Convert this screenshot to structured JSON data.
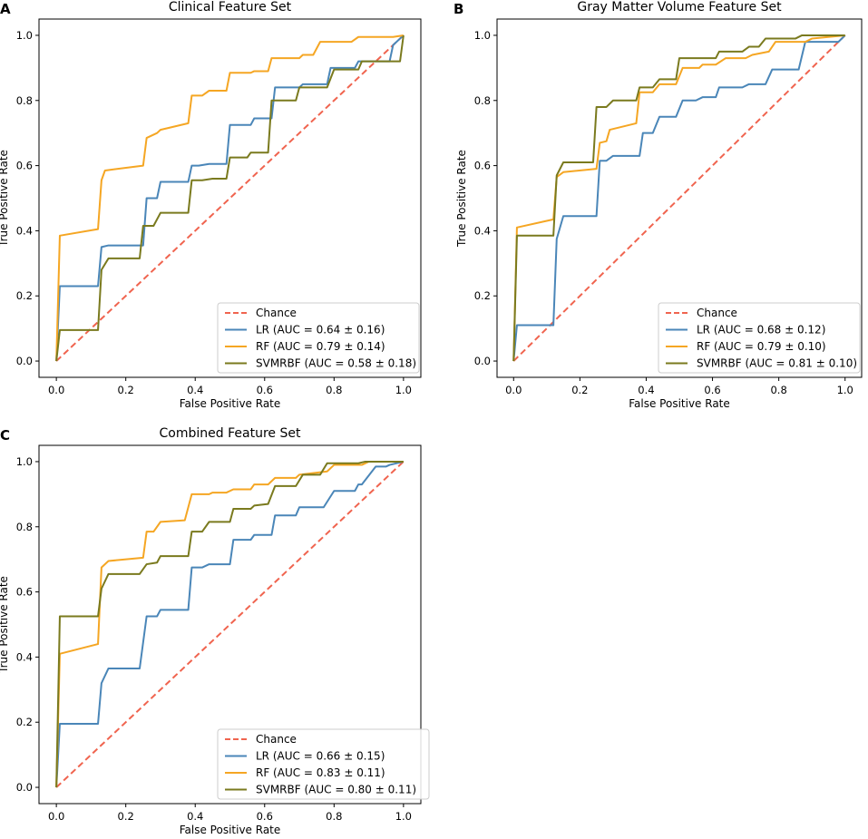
{
  "figure": {
    "series_colors": {
      "Chance": "#f0644f",
      "LR": "#4a86b8",
      "RF": "#f5a623",
      "SVMRBF": "#7a7a1e"
    }
  },
  "chart_data": [
    {
      "panel": "A",
      "type": "line",
      "title": "Clinical Feature Set",
      "xlabel": "False Positive Rate",
      "ylabel": "True Positive Rate",
      "xlim": [
        -0.05,
        1.05
      ],
      "ylim": [
        -0.05,
        1.05
      ],
      "xticks": [
        "0.0",
        "0.2",
        "0.4",
        "0.6",
        "0.8",
        "1.0"
      ],
      "yticks": [
        "0.0",
        "0.2",
        "0.4",
        "0.6",
        "0.8",
        "1.0"
      ],
      "legend_position": "lower-right",
      "series": [
        {
          "name": "Chance",
          "label": "Chance",
          "style": "dashed",
          "x": [
            0,
            1
          ],
          "y": [
            0,
            1
          ]
        },
        {
          "name": "LR",
          "label": "LR (AUC = 0.64 ± 0.16)",
          "x": [
            0,
            0.01,
            0.12,
            0.13,
            0.15,
            0.25,
            0.26,
            0.29,
            0.3,
            0.38,
            0.39,
            0.41,
            0.44,
            0.49,
            0.5,
            0.56,
            0.57,
            0.62,
            0.63,
            0.7,
            0.71,
            0.78,
            0.79,
            0.86,
            0.87,
            0.96,
            0.97,
            1.0
          ],
          "y": [
            0,
            0.23,
            0.23,
            0.35,
            0.355,
            0.355,
            0.5,
            0.5,
            0.55,
            0.55,
            0.6,
            0.6,
            0.605,
            0.605,
            0.725,
            0.725,
            0.745,
            0.745,
            0.84,
            0.84,
            0.85,
            0.85,
            0.9,
            0.9,
            0.92,
            0.92,
            0.97,
            1.0
          ]
        },
        {
          "name": "RF",
          "label": "RF (AUC = 0.79 ± 0.14)",
          "x": [
            0,
            0.01,
            0.12,
            0.13,
            0.14,
            0.25,
            0.26,
            0.29,
            0.3,
            0.38,
            0.39,
            0.42,
            0.44,
            0.49,
            0.5,
            0.56,
            0.57,
            0.61,
            0.62,
            0.7,
            0.71,
            0.74,
            0.76,
            0.85,
            0.87,
            0.96,
            0.97,
            1.0
          ],
          "y": [
            0,
            0.385,
            0.405,
            0.555,
            0.585,
            0.6,
            0.685,
            0.7,
            0.71,
            0.73,
            0.815,
            0.815,
            0.83,
            0.83,
            0.885,
            0.885,
            0.89,
            0.89,
            0.93,
            0.93,
            0.94,
            0.94,
            0.98,
            0.98,
            0.995,
            0.995,
            0.995,
            1.0
          ]
        },
        {
          "name": "SVMRBF",
          "label": "SVMRBF (AUC = 0.58 ± 0.18)",
          "x": [
            0,
            0.01,
            0.12,
            0.13,
            0.15,
            0.24,
            0.25,
            0.28,
            0.3,
            0.38,
            0.39,
            0.42,
            0.45,
            0.49,
            0.5,
            0.55,
            0.56,
            0.61,
            0.62,
            0.69,
            0.7,
            0.78,
            0.8,
            0.87,
            0.88,
            0.99,
            1.0
          ],
          "y": [
            0,
            0.095,
            0.095,
            0.28,
            0.315,
            0.315,
            0.415,
            0.415,
            0.455,
            0.455,
            0.555,
            0.555,
            0.56,
            0.56,
            0.625,
            0.625,
            0.64,
            0.64,
            0.8,
            0.8,
            0.84,
            0.84,
            0.895,
            0.895,
            0.92,
            0.92,
            1.0
          ]
        }
      ]
    },
    {
      "panel": "B",
      "type": "line",
      "title": "Gray Matter Volume Feature Set",
      "xlabel": "False Positive Rate",
      "ylabel": "True Positive Rate",
      "xlim": [
        -0.05,
        1.05
      ],
      "ylim": [
        -0.05,
        1.05
      ],
      "xticks": [
        "0.0",
        "0.2",
        "0.4",
        "0.6",
        "0.8",
        "1.0"
      ],
      "yticks": [
        "0.0",
        "0.2",
        "0.4",
        "0.6",
        "0.8",
        "1.0"
      ],
      "legend_position": "lower-right",
      "series": [
        {
          "name": "Chance",
          "label": "Chance",
          "style": "dashed",
          "x": [
            0,
            1
          ],
          "y": [
            0,
            1
          ]
        },
        {
          "name": "LR",
          "label": "LR (AUC = 0.68 ± 0.12)",
          "x": [
            0,
            0.01,
            0.12,
            0.13,
            0.15,
            0.25,
            0.26,
            0.28,
            0.3,
            0.38,
            0.39,
            0.42,
            0.44,
            0.49,
            0.51,
            0.55,
            0.57,
            0.61,
            0.62,
            0.69,
            0.71,
            0.76,
            0.78,
            0.86,
            0.88,
            0.98,
            1.0
          ],
          "y": [
            0,
            0.11,
            0.11,
            0.375,
            0.445,
            0.445,
            0.615,
            0.615,
            0.63,
            0.63,
            0.7,
            0.7,
            0.75,
            0.75,
            0.8,
            0.8,
            0.81,
            0.81,
            0.84,
            0.84,
            0.85,
            0.85,
            0.895,
            0.895,
            0.98,
            0.98,
            1.0
          ]
        },
        {
          "name": "RF",
          "label": "RF (AUC = 0.79 ± 0.10)",
          "x": [
            0,
            0.01,
            0.12,
            0.13,
            0.15,
            0.25,
            0.26,
            0.28,
            0.29,
            0.37,
            0.38,
            0.42,
            0.44,
            0.49,
            0.51,
            0.56,
            0.57,
            0.61,
            0.64,
            0.7,
            0.72,
            0.77,
            0.79,
            0.88,
            0.9,
            1.0
          ],
          "y": [
            0,
            0.41,
            0.435,
            0.565,
            0.58,
            0.59,
            0.67,
            0.675,
            0.71,
            0.73,
            0.825,
            0.825,
            0.85,
            0.85,
            0.9,
            0.9,
            0.91,
            0.91,
            0.93,
            0.93,
            0.94,
            0.95,
            0.98,
            0.98,
            0.99,
            1.0
          ]
        },
        {
          "name": "SVMRBF",
          "label": "SVMRBF (AUC = 0.81 ± 0.10)",
          "x": [
            0,
            0.01,
            0.12,
            0.13,
            0.15,
            0.24,
            0.25,
            0.28,
            0.3,
            0.37,
            0.38,
            0.42,
            0.44,
            0.49,
            0.5,
            0.61,
            0.62,
            0.69,
            0.71,
            0.74,
            0.76,
            0.85,
            0.87,
            1.0
          ],
          "y": [
            0,
            0.385,
            0.385,
            0.57,
            0.61,
            0.61,
            0.78,
            0.78,
            0.8,
            0.8,
            0.84,
            0.84,
            0.865,
            0.865,
            0.93,
            0.93,
            0.95,
            0.95,
            0.965,
            0.965,
            0.99,
            0.99,
            1.0,
            1.0
          ]
        }
      ]
    },
    {
      "panel": "C",
      "type": "line",
      "title": "Combined Feature Set",
      "xlabel": "False Positive Rate",
      "ylabel": "True Positive Rate",
      "xlim": [
        -0.05,
        1.05
      ],
      "ylim": [
        -0.05,
        1.05
      ],
      "xticks": [
        "0.0",
        "0.2",
        "0.4",
        "0.6",
        "0.8",
        "1.0"
      ],
      "yticks": [
        "0.0",
        "0.2",
        "0.4",
        "0.6",
        "0.8",
        "1.0"
      ],
      "legend_position": "lower-right",
      "series": [
        {
          "name": "Chance",
          "label": "Chance",
          "style": "dashed",
          "x": [
            0,
            1
          ],
          "y": [
            0,
            1
          ]
        },
        {
          "name": "LR",
          "label": "LR (AUC = 0.66 ± 0.15)",
          "x": [
            0,
            0.01,
            0.12,
            0.13,
            0.15,
            0.24,
            0.26,
            0.29,
            0.3,
            0.38,
            0.39,
            0.42,
            0.44,
            0.5,
            0.51,
            0.56,
            0.57,
            0.62,
            0.63,
            0.69,
            0.7,
            0.77,
            0.8,
            0.86,
            0.87,
            0.88,
            0.92,
            0.95,
            0.96,
            1.0
          ],
          "y": [
            0,
            0.195,
            0.195,
            0.32,
            0.365,
            0.365,
            0.525,
            0.525,
            0.545,
            0.545,
            0.675,
            0.675,
            0.685,
            0.685,
            0.76,
            0.76,
            0.775,
            0.775,
            0.835,
            0.835,
            0.86,
            0.86,
            0.91,
            0.91,
            0.93,
            0.93,
            0.985,
            0.985,
            0.99,
            1.0
          ]
        },
        {
          "name": "RF",
          "label": "RF (AUC = 0.83 ± 0.11)",
          "x": [
            0,
            0.01,
            0.12,
            0.13,
            0.15,
            0.25,
            0.26,
            0.28,
            0.3,
            0.37,
            0.39,
            0.44,
            0.45,
            0.49,
            0.51,
            0.56,
            0.57,
            0.61,
            0.63,
            0.69,
            0.7,
            0.78,
            0.8,
            0.88,
            0.9,
            1.0
          ],
          "y": [
            0,
            0.41,
            0.44,
            0.675,
            0.695,
            0.705,
            0.785,
            0.785,
            0.815,
            0.82,
            0.9,
            0.9,
            0.905,
            0.905,
            0.915,
            0.915,
            0.93,
            0.93,
            0.95,
            0.95,
            0.96,
            0.97,
            0.99,
            0.99,
            1.0,
            1.0
          ]
        },
        {
          "name": "SVMRBF",
          "label": "SVMRBF (AUC = 0.80 ± 0.11)",
          "x": [
            0,
            0.01,
            0.12,
            0.13,
            0.15,
            0.24,
            0.26,
            0.29,
            0.3,
            0.38,
            0.39,
            0.42,
            0.44,
            0.5,
            0.51,
            0.56,
            0.57,
            0.61,
            0.63,
            0.69,
            0.71,
            0.76,
            0.78,
            0.87,
            0.89,
            1.0
          ],
          "y": [
            0,
            0.525,
            0.525,
            0.61,
            0.655,
            0.655,
            0.685,
            0.69,
            0.71,
            0.71,
            0.785,
            0.785,
            0.815,
            0.815,
            0.855,
            0.855,
            0.865,
            0.87,
            0.925,
            0.925,
            0.96,
            0.96,
            0.995,
            0.995,
            1.0,
            1.0
          ]
        }
      ]
    }
  ]
}
